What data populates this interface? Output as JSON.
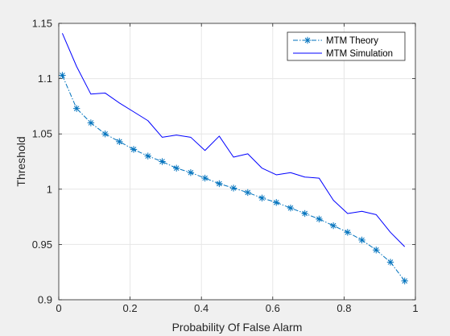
{
  "colors": {
    "figure_background": "#f0f0f0",
    "axes_background": "#ffffff",
    "axes_edge": "#262626",
    "grid": "#e6e6e6",
    "theory_line": "#0072bd",
    "simulation_line": "#0000ff"
  },
  "chart_data": {
    "type": "line",
    "title": "",
    "xlabel": "Probability Of False Alarm",
    "ylabel": "Threshold",
    "xlim": [
      0,
      1
    ],
    "ylim": [
      0.9,
      1.15
    ],
    "xticks": [
      0,
      0.2,
      0.4,
      0.6,
      0.8,
      1
    ],
    "xtick_labels": [
      "0",
      "0.2",
      "0.4",
      "0.6",
      "0.8",
      "1"
    ],
    "yticks": [
      0.9,
      0.95,
      1,
      1.05,
      1.1,
      1.15
    ],
    "ytick_labels": [
      "0.9",
      "0.95",
      "1",
      "1.05",
      "1.1",
      "1.15"
    ],
    "grid": true,
    "box": true,
    "legend_position": "top-right",
    "series": [
      {
        "name": "MTM Theory",
        "line_style": "dash-dot",
        "marker": "asterisk",
        "color": "#0072bd",
        "x": [
          0.01,
          0.05,
          0.09,
          0.13,
          0.17,
          0.21,
          0.25,
          0.29,
          0.33,
          0.37,
          0.41,
          0.45,
          0.49,
          0.53,
          0.57,
          0.61,
          0.65,
          0.69,
          0.73,
          0.77,
          0.81,
          0.85,
          0.89,
          0.93,
          0.97
        ],
        "y": [
          1.103,
          1.073,
          1.06,
          1.05,
          1.043,
          1.036,
          1.03,
          1.025,
          1.019,
          1.015,
          1.01,
          1.005,
          1.001,
          0.997,
          0.992,
          0.988,
          0.983,
          0.978,
          0.973,
          0.967,
          0.961,
          0.954,
          0.945,
          0.934,
          0.917
        ]
      },
      {
        "name": "MTM Simulation",
        "line_style": "solid",
        "marker": "none",
        "color": "#0000ff",
        "x": [
          0.01,
          0.05,
          0.09,
          0.13,
          0.17,
          0.21,
          0.25,
          0.29,
          0.33,
          0.37,
          0.41,
          0.45,
          0.49,
          0.53,
          0.57,
          0.61,
          0.65,
          0.69,
          0.73,
          0.77,
          0.81,
          0.85,
          0.89,
          0.93,
          0.97
        ],
        "y": [
          1.141,
          1.111,
          1.086,
          1.087,
          1.078,
          1.07,
          1.062,
          1.047,
          1.049,
          1.047,
          1.035,
          1.048,
          1.029,
          1.032,
          1.019,
          1.013,
          1.015,
          1.011,
          1.01,
          0.99,
          0.978,
          0.98,
          0.977,
          0.961,
          0.948
        ]
      }
    ]
  }
}
